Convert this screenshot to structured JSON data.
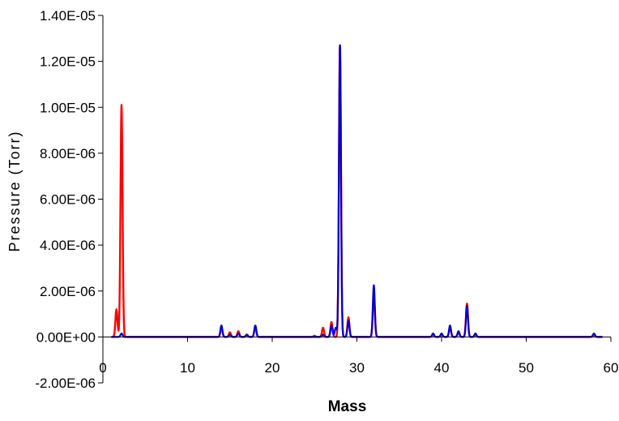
{
  "chart_data": {
    "type": "line",
    "title": "",
    "xlabel": "Mass",
    "ylabel": "Pressure (Torr)",
    "xlim": [
      0,
      60
    ],
    "ylim": [
      -2e-06,
      1.4e-05
    ],
    "x_ticks": [
      0,
      10,
      20,
      30,
      40,
      50,
      60
    ],
    "x_tick_labels": [
      "0",
      "10",
      "20",
      "30",
      "40",
      "50",
      "60"
    ],
    "y_ticks": [
      -2e-06,
      0,
      2e-06,
      4e-06,
      6e-06,
      8e-06,
      1e-05,
      1.2e-05,
      1.4e-05
    ],
    "y_tick_labels": [
      "-2.00E-06",
      "0.00E+00",
      "2.00E-06",
      "4.00E-06",
      "6.00E-06",
      "8.00E-06",
      "1.00E-05",
      "1.20E-05",
      "1.40E-05"
    ],
    "grid": false,
    "legend": "none",
    "x_range": [
      1.0,
      59.0
    ],
    "series": [
      {
        "color": "#ff0000",
        "peaks": [
          [
            1.6,
            1.2e-06
          ],
          [
            2.2,
            1.01e-05
          ],
          [
            14.0,
            4e-07
          ],
          [
            15.0,
            2e-07
          ],
          [
            16.0,
            2.5e-07
          ],
          [
            17.0,
            1e-07
          ],
          [
            18.0,
            4.5e-07
          ],
          [
            25.0,
            5e-08
          ],
          [
            26.0,
            4e-07
          ],
          [
            27.0,
            6.5e-07
          ],
          [
            28.0,
            1.27e-05
          ],
          [
            29.0,
            8.5e-07
          ],
          [
            32.0,
            1.85e-06
          ],
          [
            39.0,
            1e-07
          ],
          [
            40.0,
            1e-07
          ],
          [
            41.0,
            4e-07
          ],
          [
            42.0,
            2e-07
          ],
          [
            43.0,
            1.45e-06
          ],
          [
            44.0,
            1e-07
          ],
          [
            58.0,
            1e-07
          ]
        ]
      },
      {
        "color": "#0000cc",
        "peaks": [
          [
            2.2,
            1.5e-07
          ],
          [
            14.0,
            5e-07
          ],
          [
            15.0,
            1e-07
          ],
          [
            16.0,
            1.5e-07
          ],
          [
            17.0,
            1e-07
          ],
          [
            18.0,
            5e-07
          ],
          [
            26.0,
            1e-07
          ],
          [
            27.0,
            5e-07
          ],
          [
            27.5,
            4e-07
          ],
          [
            28.0,
            1.27e-05
          ],
          [
            29.0,
            7e-07
          ],
          [
            32.0,
            2.25e-06
          ],
          [
            39.0,
            1.5e-07
          ],
          [
            40.0,
            1.5e-07
          ],
          [
            41.0,
            5e-07
          ],
          [
            42.0,
            2.5e-07
          ],
          [
            43.0,
            1.35e-06
          ],
          [
            44.0,
            1.5e-07
          ],
          [
            58.0,
            1.5e-07
          ]
        ]
      }
    ]
  }
}
